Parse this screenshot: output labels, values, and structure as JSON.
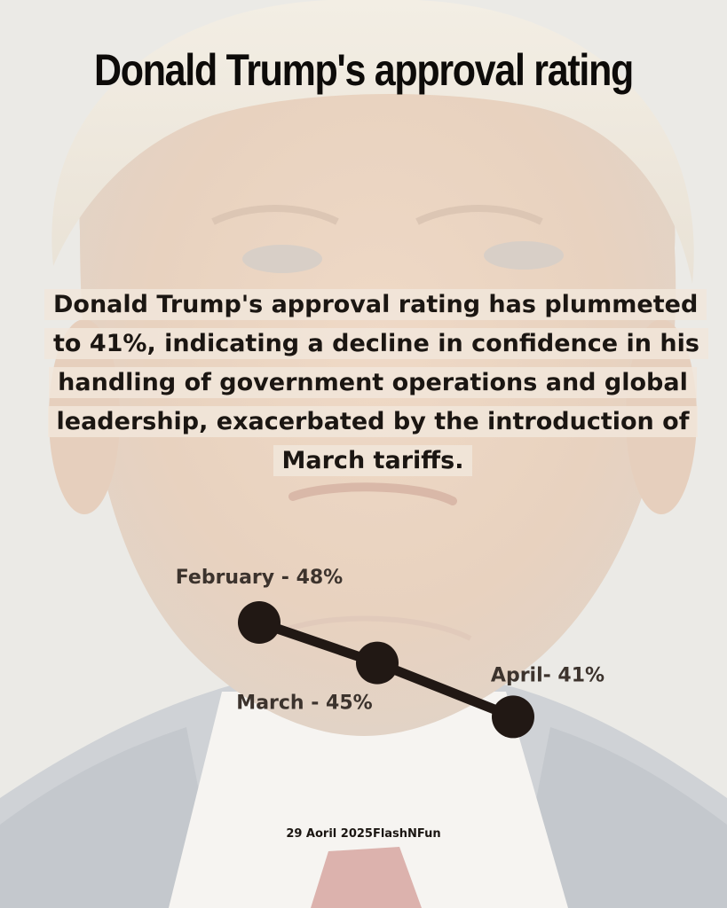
{
  "title": "Donald Trump's approval rating",
  "description": "Donald Trump's approval rating has plummeted to 41%, indicating a decline in confidence in his handling of government operations and global leadership, exacerbated by the introduction of March tariffs.",
  "footer": "29 Aoril 2025FlashNFun",
  "colors": {
    "marker": "#211814",
    "line": "#211814",
    "label": "#3c332d",
    "text_bg": "#f1e6db"
  },
  "chart_data": {
    "type": "line",
    "title": "",
    "xlabel": "",
    "ylabel": "",
    "categories": [
      "February",
      "March",
      "April"
    ],
    "values": [
      48,
      45,
      41
    ],
    "unit": "%",
    "point_labels": [
      "February - 48%",
      "March - 45%",
      "April- 41%"
    ],
    "grid": false
  }
}
